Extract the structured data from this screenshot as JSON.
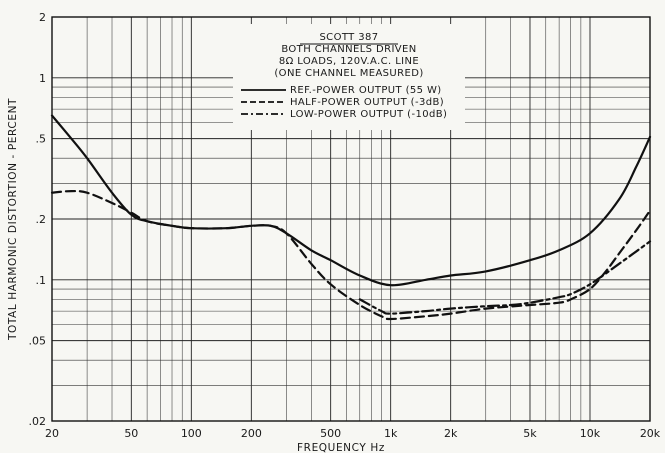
{
  "chart_data": {
    "type": "line",
    "x_scale": "log",
    "y_scale": "log",
    "xlim": [
      20,
      20000
    ],
    "ylim": [
      0.02,
      2
    ],
    "xlabel": "FREQUENCY  Hz",
    "ylabel": "TOTAL HARMONIC DISTORTION - PERCENT",
    "x_ticks": [
      {
        "value": 20,
        "label": "20"
      },
      {
        "value": 50,
        "label": "50"
      },
      {
        "value": 100,
        "label": "100"
      },
      {
        "value": 200,
        "label": "200"
      },
      {
        "value": 500,
        "label": "500"
      },
      {
        "value": 1000,
        "label": "1k"
      },
      {
        "value": 2000,
        "label": "2k"
      },
      {
        "value": 5000,
        "label": "5k"
      },
      {
        "value": 10000,
        "label": "10k"
      },
      {
        "value": 20000,
        "label": "20k"
      }
    ],
    "y_ticks": [
      {
        "value": 2,
        "label": "2"
      },
      {
        "value": 1,
        "label": "1"
      },
      {
        "value": 0.5,
        "label": ".5"
      },
      {
        "value": 0.2,
        "label": ".2"
      },
      {
        "value": 0.1,
        "label": ".1"
      },
      {
        "value": 0.05,
        "label": ".05"
      },
      {
        "value": 0.02,
        "label": ".02"
      }
    ],
    "grid": true,
    "legend": {
      "placement": "top-center",
      "header": [
        "SCOTT 387",
        "BOTH CHANNELS DRIVEN",
        "8Ω LOADS, 120V.A.C. LINE",
        "(ONE CHANNEL MEASURED)"
      ]
    },
    "series": [
      {
        "name": "REF.-POWER OUTPUT (55 W)",
        "dash": "solid",
        "x": [
          20,
          25,
          30,
          40,
          50,
          60,
          80,
          100,
          150,
          200,
          250,
          300,
          400,
          500,
          700,
          1000,
          1500,
          2000,
          3000,
          5000,
          7000,
          10000,
          14000,
          17000,
          20000
        ],
        "y": [
          0.65,
          0.5,
          0.4,
          0.27,
          0.21,
          0.195,
          0.185,
          0.18,
          0.18,
          0.185,
          0.185,
          0.17,
          0.14,
          0.125,
          0.105,
          0.094,
          0.1,
          0.105,
          0.11,
          0.125,
          0.14,
          0.17,
          0.25,
          0.36,
          0.51
        ]
      },
      {
        "name": "HALF-POWER OUTPUT (-3dB)",
        "dash": "dashed",
        "x": [
          20,
          25,
          30,
          40,
          50,
          60,
          80,
          100,
          150,
          200,
          250,
          300,
          400,
          500,
          700,
          900,
          1000,
          1500,
          2000,
          3000,
          5000,
          7000,
          8000,
          10000,
          12000,
          14000,
          17000,
          20000
        ],
        "y": [
          0.27,
          0.275,
          0.27,
          0.24,
          0.215,
          0.195,
          0.185,
          0.18,
          0.18,
          0.185,
          0.185,
          0.17,
          0.12,
          0.095,
          0.075,
          0.066,
          0.064,
          0.066,
          0.068,
          0.072,
          0.075,
          0.077,
          0.08,
          0.09,
          0.11,
          0.135,
          0.175,
          0.22
        ]
      },
      {
        "name": "LOW-POWER OUTPUT (-10dB)",
        "dash": "dashdot",
        "x": [
          700,
          900,
          1000,
          1500,
          2000,
          3000,
          4000,
          5000,
          7000,
          8000,
          10000,
          14000,
          20000
        ],
        "y": [
          0.08,
          0.07,
          0.068,
          0.07,
          0.072,
          0.074,
          0.075,
          0.077,
          0.082,
          0.085,
          0.095,
          0.12,
          0.155
        ]
      }
    ]
  }
}
